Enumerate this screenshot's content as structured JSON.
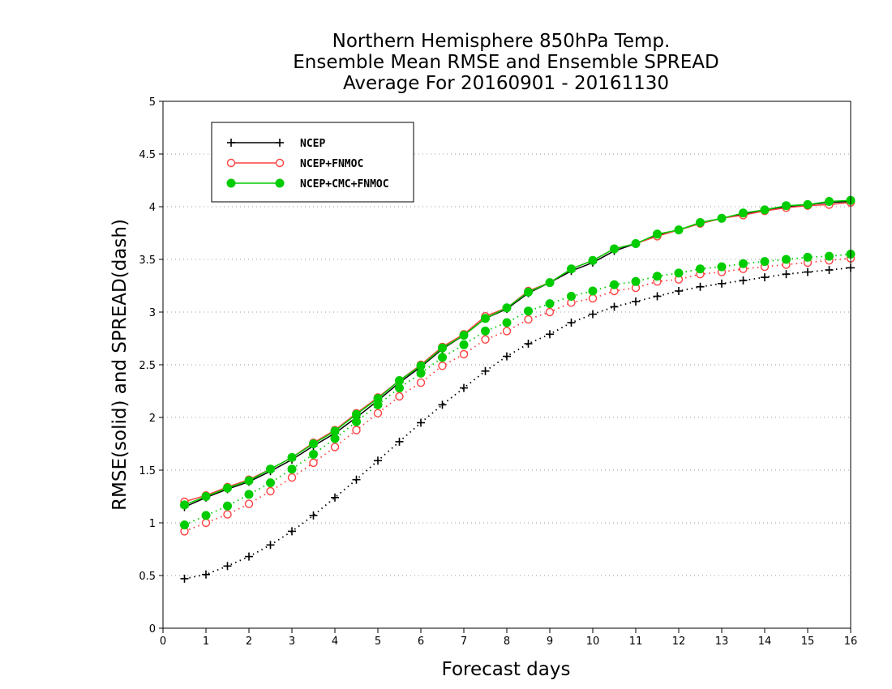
{
  "chart_data": {
    "type": "line",
    "title": [
      "Northern Hemisphere 850hPa Temp.",
      "Ensemble Mean RMSE and Ensemble SPREAD",
      "Average For 20160901 - 20161130"
    ],
    "xlabel": "Forecast days",
    "ylabel": "RMSE(solid) and SPREAD(dash)",
    "xlim": [
      0,
      16
    ],
    "ylim": [
      0,
      5
    ],
    "xticks": [
      0,
      1,
      2,
      3,
      4,
      5,
      6,
      7,
      8,
      9,
      10,
      11,
      12,
      13,
      14,
      15,
      16
    ],
    "yticks": [
      0,
      0.5,
      1,
      1.5,
      2,
      2.5,
      3,
      3.5,
      4,
      4.5,
      5
    ],
    "grid": true,
    "legend_position": "top-left",
    "x": [
      0.5,
      1,
      1.5,
      2,
      2.5,
      3,
      3.5,
      4,
      4.5,
      5,
      5.5,
      6,
      6.5,
      7,
      7.5,
      8,
      8.5,
      9,
      9.5,
      10,
      10.5,
      11,
      11.5,
      12,
      12.5,
      13,
      13.5,
      14,
      14.5,
      15,
      15.5,
      16
    ],
    "series": [
      {
        "name": "NCEP",
        "style": "solid",
        "marker": "plus",
        "color": "#000000",
        "values": [
          1.15,
          1.24,
          1.32,
          1.39,
          1.49,
          1.6,
          1.73,
          1.85,
          2.0,
          2.16,
          2.33,
          2.48,
          2.65,
          2.78,
          2.94,
          3.03,
          3.18,
          3.28,
          3.39,
          3.47,
          3.58,
          3.65,
          3.73,
          3.78,
          3.84,
          3.89,
          3.93,
          3.97,
          4.0,
          4.02,
          4.04,
          4.05
        ]
      },
      {
        "name": "NCEP+FNMOC",
        "style": "solid",
        "marker": "open-circle",
        "color": "#ff4040",
        "values": [
          1.2,
          1.26,
          1.34,
          1.41,
          1.51,
          1.62,
          1.76,
          1.88,
          2.04,
          2.19,
          2.35,
          2.5,
          2.67,
          2.79,
          2.96,
          3.04,
          3.2,
          3.28,
          3.41,
          3.49,
          3.6,
          3.65,
          3.72,
          3.78,
          3.84,
          3.89,
          3.92,
          3.96,
          3.99,
          4.01,
          4.02,
          4.04
        ]
      },
      {
        "name": "NCEP+CMC+FNMOC",
        "style": "solid",
        "marker": "filled-circle",
        "color": "#00cc00",
        "values": [
          1.17,
          1.25,
          1.33,
          1.4,
          1.51,
          1.62,
          1.75,
          1.87,
          2.03,
          2.18,
          2.35,
          2.49,
          2.66,
          2.78,
          2.94,
          3.04,
          3.19,
          3.28,
          3.41,
          3.49,
          3.6,
          3.65,
          3.74,
          3.78,
          3.85,
          3.89,
          3.94,
          3.97,
          4.01,
          4.02,
          4.05,
          4.06
        ]
      },
      {
        "name": "NCEP",
        "style": "dotted",
        "marker": "plus",
        "color": "#000000",
        "values": [
          0.47,
          0.51,
          0.59,
          0.68,
          0.79,
          0.92,
          1.07,
          1.24,
          1.41,
          1.59,
          1.77,
          1.95,
          2.12,
          2.28,
          2.44,
          2.58,
          2.7,
          2.79,
          2.9,
          2.98,
          3.05,
          3.1,
          3.15,
          3.2,
          3.24,
          3.27,
          3.3,
          3.33,
          3.36,
          3.38,
          3.4,
          3.42
        ]
      },
      {
        "name": "NCEP+FNMOC",
        "style": "dotted",
        "marker": "open-circle",
        "color": "#ff4040",
        "values": [
          0.92,
          1.0,
          1.08,
          1.18,
          1.3,
          1.43,
          1.57,
          1.72,
          1.88,
          2.04,
          2.2,
          2.33,
          2.49,
          2.6,
          2.74,
          2.82,
          2.93,
          3.0,
          3.09,
          3.13,
          3.2,
          3.23,
          3.29,
          3.31,
          3.36,
          3.38,
          3.41,
          3.43,
          3.45,
          3.47,
          3.49,
          3.51
        ]
      },
      {
        "name": "NCEP+CMC+FNMOC",
        "style": "dotted",
        "marker": "filled-circle",
        "color": "#00cc00",
        "values": [
          0.98,
          1.07,
          1.16,
          1.27,
          1.38,
          1.51,
          1.65,
          1.8,
          1.96,
          2.12,
          2.28,
          2.42,
          2.57,
          2.69,
          2.82,
          2.9,
          3.01,
          3.08,
          3.15,
          3.2,
          3.26,
          3.29,
          3.34,
          3.37,
          3.41,
          3.43,
          3.46,
          3.48,
          3.5,
          3.52,
          3.53,
          3.55
        ]
      }
    ],
    "legend": [
      {
        "label": "NCEP",
        "marker": "plus",
        "color": "#000000"
      },
      {
        "label": "NCEP+FNMOC",
        "marker": "open-circle",
        "color": "#ff4040"
      },
      {
        "label": "NCEP+CMC+FNMOC",
        "marker": "filled-circle",
        "color": "#00cc00"
      }
    ]
  }
}
